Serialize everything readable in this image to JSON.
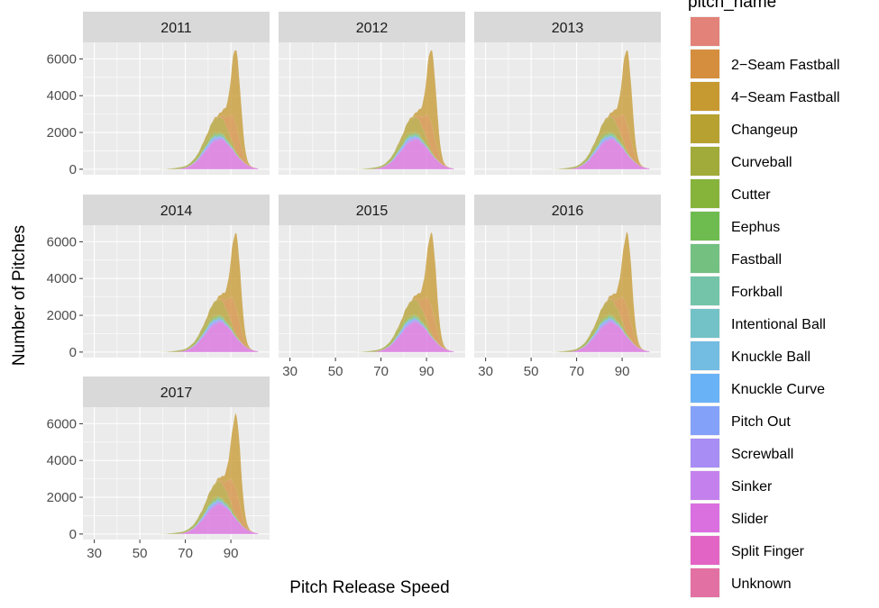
{
  "chart_data": {
    "type": "area",
    "title": "",
    "xlabel": "Pitch Release Speed",
    "ylabel": "Number of Pitches",
    "facets": [
      "2011",
      "2012",
      "2013",
      "2014",
      "2015",
      "2016",
      "2017"
    ],
    "xlim": [
      25,
      107
    ],
    "ylim": [
      -300,
      6900
    ],
    "x_ticks": [
      30,
      50,
      70,
      90
    ],
    "y_ticks": [
      0,
      2000,
      4000,
      6000
    ],
    "stacked": true,
    "legend": {
      "title": "pitch_name",
      "position": "right",
      "entries": [
        {
          "name": "",
          "color": "#E07B72"
        },
        {
          "name": "2−Seam Fastball",
          "color": "#D38833"
        },
        {
          "name": "4−Seam Fastball",
          "color": "#C49426"
        },
        {
          "name": "Changeup",
          "color": "#B29C26"
        },
        {
          "name": "Curveball",
          "color": "#9CA62E"
        },
        {
          "name": "Cutter",
          "color": "#7FAF2F"
        },
        {
          "name": "Eephus",
          "color": "#66B846"
        },
        {
          "name": "Fastball",
          "color": "#6CBD7A"
        },
        {
          "name": "Forkball",
          "color": "#6CC1A3"
        },
        {
          "name": "Intentional Ball",
          "color": "#6CBFC4"
        },
        {
          "name": "Knuckle Ball",
          "color": "#6BB8E0"
        },
        {
          "name": "Knuckle Curve",
          "color": "#62AEF5"
        },
        {
          "name": "Pitch Out",
          "color": "#7C9CF9"
        },
        {
          "name": "Screwball",
          "color": "#A287F3"
        },
        {
          "name": "Sinker",
          "color": "#C17AEC"
        },
        {
          "name": "Slider",
          "color": "#D868DE"
        },
        {
          "name": "Split Finger",
          "color": "#E05CC1"
        },
        {
          "name": "Unknown",
          "color": "#E0689E"
        }
      ]
    },
    "series_approx": [
      {
        "name": "Slider",
        "peak_x": 85,
        "peak_y": 1600
      },
      {
        "name": "Curveball",
        "peak_x": 79,
        "peak_y": 300
      },
      {
        "name": "Changeup",
        "peak_x": 84,
        "peak_y": 900
      },
      {
        "name": "4−Seam Fastball",
        "peak_x": 92,
        "peak_y": 4200
      },
      {
        "name": "2−Seam Fastball",
        "peak_x": 91,
        "peak_y": 1500
      }
    ],
    "total_peak_approx": {
      "x": 92,
      "y": 6300
    }
  }
}
